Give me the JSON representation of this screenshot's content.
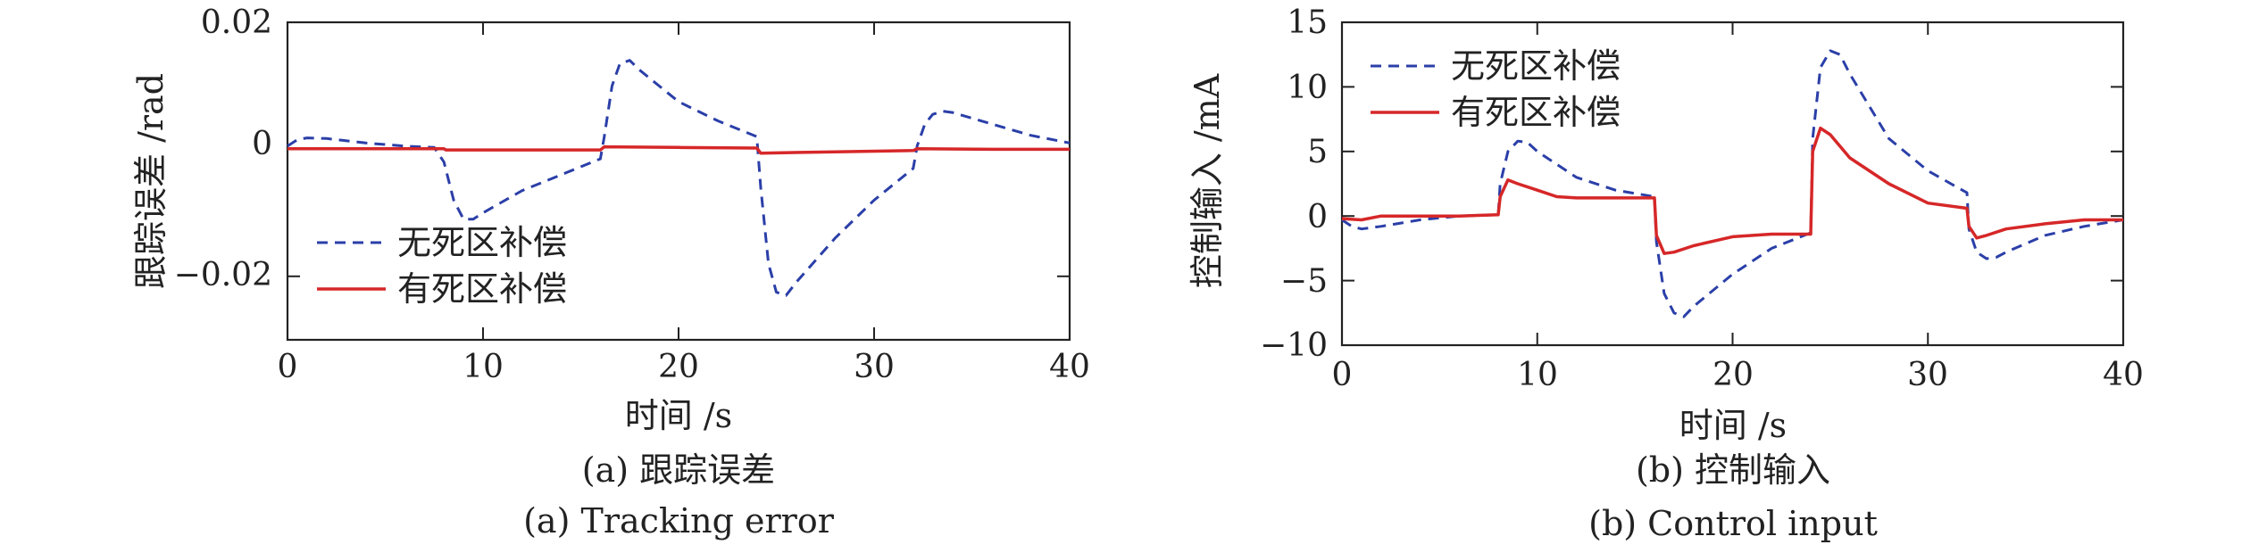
{
  "chart_data": [
    {
      "type": "line",
      "caption_cn": "(a) 跟踪误差",
      "caption_en": "(a) Tracking error",
      "xlabel": "时间 /s",
      "ylabel": "跟踪误差 /rad",
      "xlim": [
        0,
        40
      ],
      "ylim": [
        -0.03,
        0.02
      ],
      "xticks": [
        "0",
        "10",
        "20",
        "30",
        "40"
      ],
      "yticks": [
        "0.02",
        "0",
        "−0.02"
      ],
      "legend_position": "bottom-left",
      "series": [
        {
          "name": "无死区补偿",
          "color": "#2b3fa8",
          "style": "dashed",
          "x": [
            0,
            0.5,
            1,
            2,
            4,
            6,
            7.5,
            8,
            8.5,
            9,
            9.5,
            10,
            12,
            14,
            16,
            16.2,
            16.6,
            17,
            17.5,
            18,
            20,
            22,
            24,
            24.2,
            24.6,
            25,
            25.5,
            26,
            28,
            30,
            32,
            32.2,
            32.6,
            33,
            33.5,
            34,
            36,
            38,
            40
          ],
          "y": [
            0.0005,
            0.0015,
            0.0018,
            0.0017,
            0.001,
            0.0005,
            0.0003,
            -0.002,
            -0.008,
            -0.011,
            -0.011,
            -0.01,
            -0.0065,
            -0.004,
            -0.0015,
            0.002,
            0.01,
            0.0135,
            0.014,
            0.0125,
            0.0075,
            0.0045,
            0.002,
            -0.006,
            -0.018,
            -0.0225,
            -0.023,
            -0.021,
            -0.014,
            -0.008,
            -0.003,
            0.0005,
            0.004,
            0.0055,
            0.006,
            0.0058,
            0.004,
            0.0022,
            0.001
          ]
        },
        {
          "name": "有死区补偿",
          "color": "#d62728",
          "style": "solid",
          "x": [
            0,
            8,
            8.1,
            10,
            16,
            16.2,
            20,
            24,
            24.2,
            28,
            32,
            32.2,
            36,
            40
          ],
          "y": [
            0.0001,
            0.0001,
            -0.0001,
            -0.0001,
            -0.0001,
            0.0004,
            0.0003,
            0.0002,
            -0.0006,
            -0.0004,
            -0.0002,
            0.0001,
            0.0,
            0.0
          ]
        }
      ]
    },
    {
      "type": "line",
      "caption_cn": "(b) 控制输入",
      "caption_en": "(b) Control input",
      "xlabel": "时间 /s",
      "ylabel": "控制输入 /mA",
      "xlim": [
        0,
        40
      ],
      "ylim": [
        -10,
        15
      ],
      "xticks": [
        "0",
        "10",
        "20",
        "30",
        "40"
      ],
      "yticks": [
        "15",
        "10",
        "5",
        "0",
        "−5",
        "−10"
      ],
      "legend_position": "top-left",
      "series": [
        {
          "name": "无死区补偿",
          "color": "#2b3fa8",
          "style": "dashed",
          "x": [
            0,
            0.5,
            1,
            2,
            4,
            6,
            8,
            8.1,
            8.5,
            9,
            9.5,
            10,
            12,
            14,
            16,
            16.1,
            16.5,
            17,
            17.5,
            18,
            20,
            22,
            24,
            24.1,
            24.5,
            25,
            25.5,
            26,
            28,
            30,
            32,
            32.1,
            32.5,
            33,
            33.5,
            34,
            36,
            38,
            40
          ],
          "y": [
            -0.3,
            -0.8,
            -1.0,
            -0.8,
            -0.3,
            0.0,
            0.1,
            2.5,
            5.0,
            5.8,
            5.7,
            5.0,
            3.0,
            2.0,
            1.5,
            -2.0,
            -6.0,
            -7.5,
            -7.8,
            -7.0,
            -4.5,
            -2.5,
            -1.3,
            6.0,
            11.5,
            12.8,
            12.5,
            11.0,
            6.0,
            3.5,
            1.8,
            -1.0,
            -2.8,
            -3.3,
            -3.2,
            -2.8,
            -1.5,
            -0.8,
            -0.3
          ]
        },
        {
          "name": "有死区补偿",
          "color": "#d62728",
          "style": "solid",
          "x": [
            0,
            1,
            2,
            4,
            6,
            8,
            8.1,
            8.5,
            9,
            10,
            11,
            12,
            14,
            16,
            16.1,
            16.5,
            17,
            18,
            20,
            22,
            24,
            24.1,
            24.5,
            25,
            26,
            28,
            30,
            32,
            32.1,
            32.5,
            33,
            34,
            36,
            38,
            40
          ],
          "y": [
            -0.2,
            -0.3,
            0.0,
            0.0,
            0.0,
            0.1,
            1.5,
            2.8,
            2.5,
            2.0,
            1.5,
            1.4,
            1.4,
            1.4,
            -1.5,
            -2.9,
            -2.8,
            -2.3,
            -1.6,
            -1.4,
            -1.4,
            5.0,
            6.8,
            6.3,
            4.5,
            2.5,
            1.0,
            0.6,
            -0.8,
            -1.7,
            -1.5,
            -1.0,
            -0.6,
            -0.3,
            -0.3
          ]
        }
      ]
    }
  ]
}
